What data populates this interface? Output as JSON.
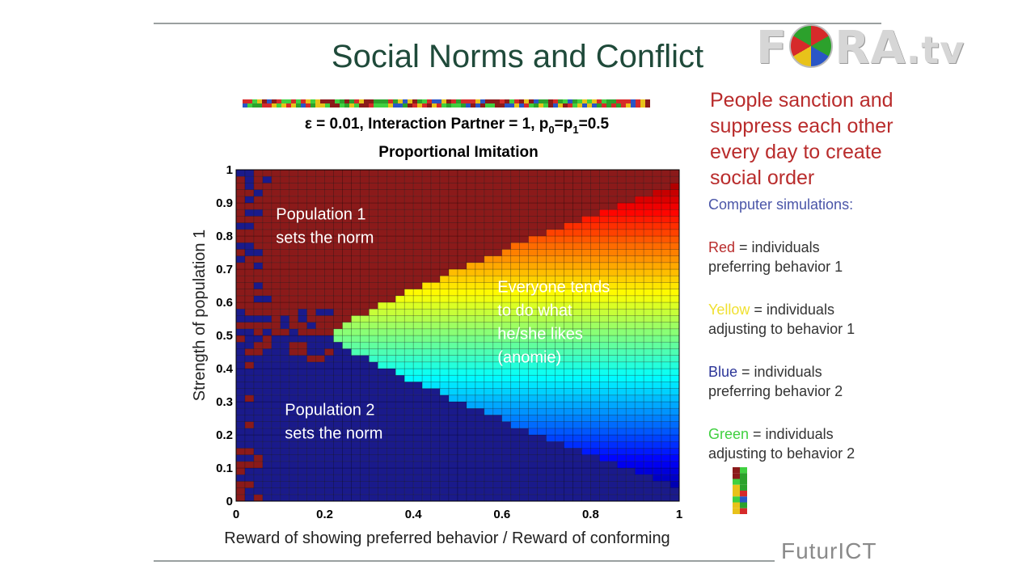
{
  "slide": {
    "title": "Social Norms and Conflict",
    "logo_prefix": "F",
    "logo_suffix": "RA",
    "logo_tv": ".tv",
    "footer_brand": "FuturICT"
  },
  "side_panel": {
    "heading": "People sanction and suppress each other every day to create social order",
    "sim_label": "Computer simulations:",
    "legend": [
      {
        "keyword": "Red",
        "text": " = individuals preferring behavior 1",
        "color": "#b92c2c"
      },
      {
        "keyword": "Yellow",
        "text": " = individuals adjusting to behavior 1",
        "color": "#f0e030"
      },
      {
        "keyword": "Blue",
        "text": " = individuals preferring behavior 2",
        "color": "#2b3598"
      },
      {
        "keyword": "Green",
        "text": " = individuals adjusting to behavior 2",
        "color": "#40d040"
      }
    ]
  },
  "chart_data": {
    "type": "heatmap",
    "title_line1": "ε = 0.01, Interaction Partner = 1, p",
    "title_line1_sub0": "0",
    "title_line1_mid": "=p",
    "title_line1_sub1": "1",
    "title_line1_end": "=0.5",
    "title_line2": "Proportional Imitation",
    "xlabel": "Reward of showing preferred behavior / Reward of conforming",
    "ylabel": "Strength of population 1",
    "xlim": [
      0,
      1
    ],
    "ylim": [
      0,
      1
    ],
    "xticks": [
      "0",
      "0.2",
      "0.4",
      "0.6",
      "0.8",
      "1"
    ],
    "yticks": [
      "0",
      "0.1",
      "0.2",
      "0.3",
      "0.4",
      "0.5",
      "0.6",
      "0.7",
      "0.8",
      "0.9",
      "1"
    ],
    "grid_resolution": 50,
    "regions": [
      {
        "label": "Population 1 sets the norm",
        "outcome": "red",
        "x_range": [
          0,
          1
        ],
        "y_range": [
          0.5,
          1
        ]
      },
      {
        "label": "Population 2 sets the norm",
        "outcome": "blue",
        "x_range": [
          0,
          1
        ],
        "y_range": [
          0,
          0.5
        ]
      },
      {
        "label": "Everyone tends to do what he/she likes (anomie)",
        "outcome": "mixed",
        "x_range": [
          0.22,
          1
        ],
        "y_range": [
          0.05,
          0.95
        ]
      }
    ],
    "annotations": [
      {
        "lines": [
          "Population 1",
          "sets the norm"
        ],
        "x": 0.09,
        "y": 0.85,
        "color": "#ffffff"
      },
      {
        "lines": [
          "Population 2",
          "sets the norm"
        ],
        "x": 0.11,
        "y": 0.26,
        "color": "#ffffff"
      },
      {
        "lines": [
          "Everyone tends",
          "to do what",
          "he/she likes",
          "(anomie)"
        ],
        "x": 0.59,
        "y": 0.63,
        "color": "#ffffff"
      }
    ],
    "colors": {
      "red_region": "#8b1a1a",
      "blue_region": "#1a1a8b",
      "grid_line": "#000000"
    }
  }
}
